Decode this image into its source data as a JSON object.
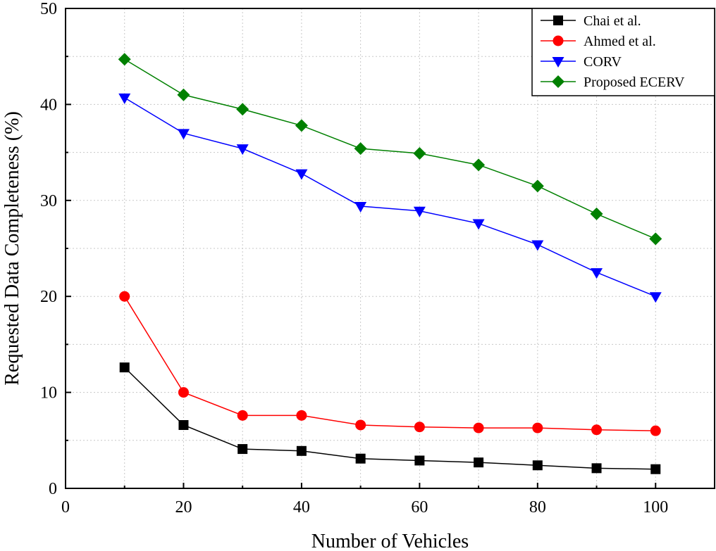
{
  "chart_data": {
    "type": "line",
    "title": "",
    "xlabel": "Number of Vehicles",
    "ylabel": "Requested Data Completeness (%)",
    "xlim": [
      0,
      110
    ],
    "ylim": [
      0,
      50
    ],
    "xticks": [
      0,
      20,
      40,
      60,
      80,
      100
    ],
    "yticks": [
      0,
      10,
      20,
      30,
      40,
      50
    ],
    "grid": true,
    "legend_position": "top-right",
    "x": [
      10,
      20,
      30,
      40,
      50,
      60,
      70,
      80,
      90,
      100
    ],
    "series": [
      {
        "name": "Chai et al.",
        "color": "#000000",
        "marker": "square",
        "values": [
          12.6,
          6.6,
          4.1,
          3.9,
          3.1,
          2.9,
          2.7,
          2.4,
          2.1,
          2.0
        ]
      },
      {
        "name": "Ahmed et al.",
        "color": "#ff0000",
        "marker": "circle",
        "values": [
          20.0,
          10.0,
          7.6,
          7.6,
          6.6,
          6.4,
          6.3,
          6.3,
          6.1,
          6.0
        ]
      },
      {
        "name": "CORV",
        "color": "#0000ff",
        "marker": "triangle-down",
        "values": [
          40.7,
          37.0,
          35.4,
          32.8,
          29.4,
          28.9,
          27.6,
          25.4,
          22.5,
          20.0
        ]
      },
      {
        "name": "Proposed ECERV",
        "color": "#008000",
        "marker": "diamond",
        "values": [
          44.7,
          41.0,
          39.5,
          37.8,
          35.4,
          34.9,
          33.7,
          31.5,
          28.6,
          26.0
        ]
      }
    ]
  }
}
